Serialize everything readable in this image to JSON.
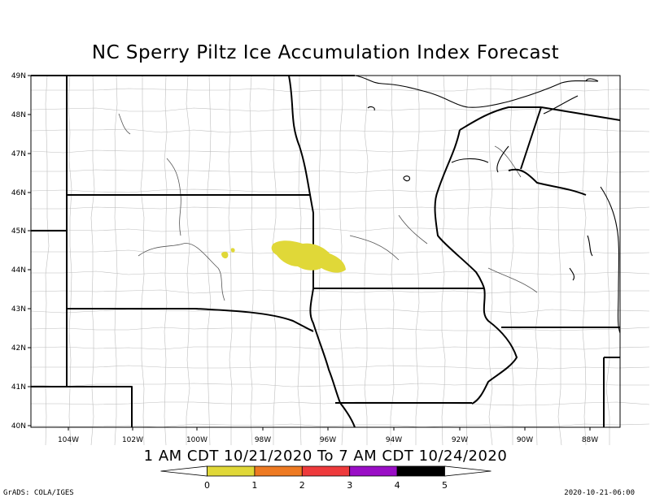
{
  "title": "NC Sperry Piltz Ice Accumulation Index Forecast",
  "period": "1 AM CDT 10/21/2020 To 7 AM CDT 10/24/2020",
  "footer": {
    "left": "GrADS: COLA/IGES",
    "right": "2020-10-21-06:00"
  },
  "map": {
    "lat_labels": [
      "49N",
      "48N",
      "47N",
      "46N",
      "45N",
      "44N",
      "43N",
      "42N",
      "41N",
      "40N"
    ],
    "lon_labels": [
      "104W",
      "102W",
      "100W",
      "98W",
      "96W",
      "94W",
      "92W",
      "90W",
      "88W"
    ],
    "ice_area_color": "#e0d838"
  },
  "colorbar": {
    "labels": [
      "0",
      "1",
      "2",
      "3",
      "4",
      "5"
    ],
    "colors": [
      "#e0d838",
      "#ee7a22",
      "#ee3a3c",
      "#9a0ec6",
      "#000000"
    ]
  }
}
